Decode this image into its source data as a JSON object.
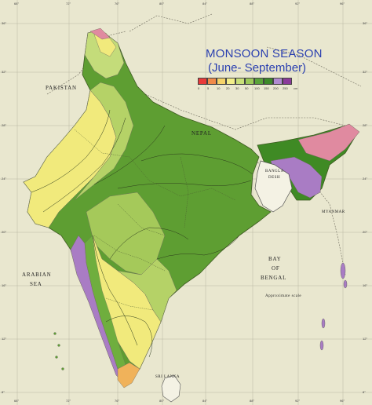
{
  "title": {
    "line1": "MONSOON SEASON",
    "line2": "(June- September)"
  },
  "legend": {
    "colors": [
      "#e83a3a",
      "#f08a4a",
      "#f5d36a",
      "#f2ee8a",
      "#c9e07a",
      "#9cc95a",
      "#5aa33a",
      "#3d8a2a",
      "#b08ad0",
      "#8a3a9a"
    ],
    "ticks": [
      "0",
      "5",
      "10",
      "20",
      "30",
      "50",
      "100",
      "150",
      "200",
      "250"
    ],
    "unit": "cm"
  },
  "labels": {
    "pakistan": "PAKISTAN",
    "nepal": "NEPAL",
    "bangladesh_1": "BANGLA",
    "bangladesh_2": "DESH",
    "myanmar": "MYANMAR",
    "arabian_1": "ARABIAN",
    "arabian_2": "SEA",
    "bay_1": "BAY",
    "bay_2": "OF",
    "bay_3": "BENGAL",
    "srilanka": "SRI LANKA",
    "scale": "Approximate scale"
  },
  "lon_ticks": [
    "68°",
    "72°",
    "76°",
    "80°",
    "84°",
    "88°",
    "92°",
    "96°"
  ],
  "lat_ticks": [
    "36°",
    "32°",
    "28°",
    "24°",
    "20°",
    "16°",
    "12°",
    "8°"
  ],
  "colors": {
    "background": "#e9e7cf",
    "title": "#2a3fb0",
    "dry_yellow": "#f1ea7c",
    "light_green": "#a5c95a",
    "green": "#5e9e32",
    "dark_green": "#3f8a24",
    "purple": "#a97cc4",
    "pink": "#e08aa0"
  }
}
